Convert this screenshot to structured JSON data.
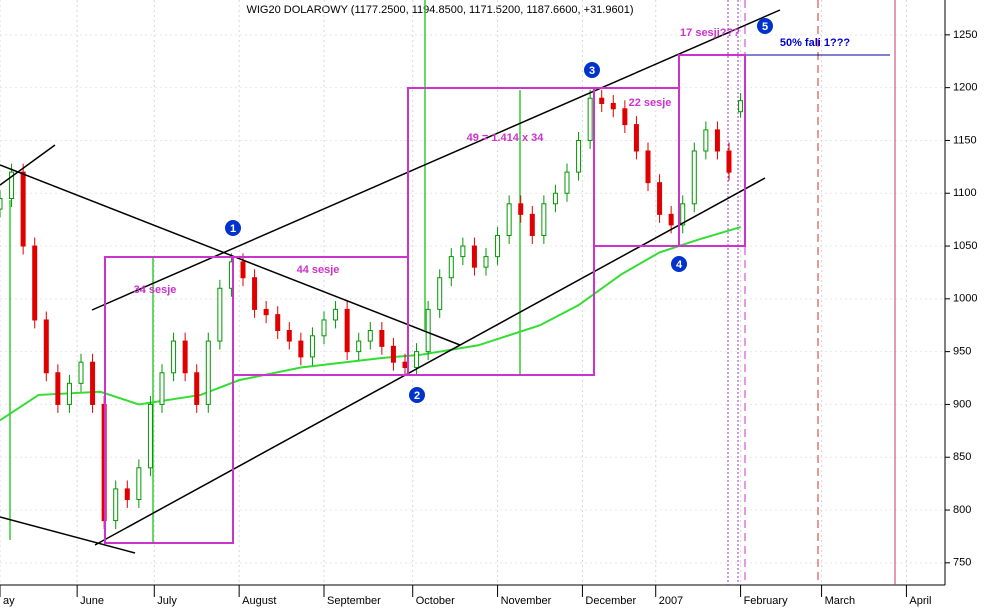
{
  "chart_data": {
    "type": "candlestick",
    "title": "WIG20 DOLAROWY (1177.2500, 1194.8500, 1171.5200, 1187.6600, +31.9601)",
    "xlim": [
      0,
      245
    ],
    "xticks": [
      {
        "value": 0,
        "label": "ay"
      },
      {
        "value": 20,
        "label": "June"
      },
      {
        "value": 40,
        "label": "July"
      },
      {
        "value": 62,
        "label": "August"
      },
      {
        "value": 84,
        "label": "September"
      },
      {
        "value": 107,
        "label": "October"
      },
      {
        "value": 129,
        "label": "November"
      },
      {
        "value": 151,
        "label": "December"
      },
      {
        "value": 170,
        "label": "2007"
      },
      {
        "value": 192,
        "label": "February"
      },
      {
        "value": 213,
        "label": "March"
      },
      {
        "value": 235,
        "label": "April"
      }
    ],
    "ylim": [
      729,
      1283
    ],
    "yticks": [
      750,
      800,
      850,
      900,
      950,
      1000,
      1050,
      1100,
      1150,
      1200,
      1250
    ],
    "grid": true,
    "candles": {
      "up_color": "#009900",
      "down_color": "#e00000",
      "x": [
        0,
        3,
        6,
        9,
        12,
        15,
        18,
        21,
        24,
        27,
        30,
        33,
        36,
        39,
        42,
        45,
        48,
        51,
        54,
        57,
        60,
        63,
        66,
        69,
        72,
        75,
        78,
        81,
        84,
        87,
        90,
        93,
        96,
        99,
        102,
        105,
        108,
        111,
        114,
        117,
        120,
        123,
        126,
        129,
        132,
        135,
        138,
        141,
        144,
        147,
        150,
        153,
        156,
        159,
        162,
        165,
        168,
        171,
        174,
        177,
        180,
        183,
        186,
        189,
        192
      ],
      "open": [
        1085,
        1095,
        1120,
        1050,
        980,
        930,
        900,
        920,
        940,
        900,
        790,
        820,
        810,
        840,
        900,
        930,
        960,
        930,
        900,
        960,
        1010,
        1035,
        1020,
        990,
        985,
        970,
        960,
        945,
        965,
        980,
        990,
        950,
        960,
        970,
        955,
        940,
        935,
        950,
        990,
        1020,
        1040,
        1050,
        1030,
        1040,
        1060,
        1090,
        1080,
        1060,
        1090,
        1100,
        1120,
        1150,
        1190,
        1185,
        1180,
        1165,
        1140,
        1110,
        1080,
        1070,
        1090,
        1140,
        1160,
        1140,
        1177.25
      ],
      "high": [
        1103,
        1128,
        1128,
        1058,
        988,
        938,
        928,
        948,
        948,
        908,
        828,
        828,
        848,
        908,
        938,
        968,
        968,
        938,
        968,
        1018,
        1043,
        1043,
        1028,
        998,
        993,
        978,
        968,
        973,
        988,
        998,
        998,
        968,
        978,
        978,
        963,
        948,
        958,
        998,
        1028,
        1048,
        1058,
        1058,
        1048,
        1068,
        1098,
        1098,
        1088,
        1098,
        1108,
        1128,
        1158,
        1198,
        1198,
        1193,
        1188,
        1173,
        1148,
        1118,
        1088,
        1098,
        1148,
        1168,
        1168,
        1148,
        1194.85
      ],
      "low": [
        1077,
        1087,
        1042,
        972,
        922,
        892,
        892,
        912,
        892,
        782,
        782,
        802,
        802,
        832,
        892,
        922,
        922,
        892,
        892,
        952,
        1002,
        1012,
        982,
        977,
        962,
        952,
        937,
        937,
        957,
        972,
        942,
        942,
        952,
        947,
        932,
        927,
        927,
        942,
        982,
        1012,
        1032,
        1022,
        1022,
        1032,
        1052,
        1072,
        1052,
        1052,
        1082,
        1092,
        1112,
        1142,
        1177,
        1172,
        1157,
        1132,
        1102,
        1072,
        1062,
        1062,
        1082,
        1132,
        1132,
        1112,
        1171.52
      ],
      "close": [
        1095,
        1120,
        1050,
        980,
        930,
        900,
        920,
        940,
        900,
        790,
        820,
        810,
        840,
        900,
        930,
        960,
        930,
        900,
        960,
        1010,
        1035,
        1020,
        990,
        985,
        970,
        960,
        945,
        965,
        980,
        990,
        950,
        960,
        970,
        955,
        940,
        935,
        950,
        990,
        1020,
        1040,
        1050,
        1030,
        1040,
        1060,
        1090,
        1080,
        1060,
        1090,
        1100,
        1120,
        1150,
        1190,
        1185,
        1180,
        1165,
        1140,
        1110,
        1080,
        1070,
        1090,
        1140,
        1160,
        1140,
        1120,
        1187.66
      ]
    },
    "ma": {
      "color": "#33dd33",
      "x": [
        0,
        10,
        26,
        36,
        52,
        62,
        78,
        99,
        109,
        124,
        140,
        150,
        161,
        171,
        181,
        192
      ],
      "values": [
        885,
        909,
        912,
        900,
        909,
        923,
        935,
        944,
        947,
        956,
        975,
        994,
        1023,
        1044,
        1056,
        1068
      ]
    },
    "annotations": [
      "34 sesje",
      "44 sesje",
      "49 = 1.414 x 34",
      "22 sesje",
      "17 sesji???",
      "50% fali 1???"
    ],
    "wave_labels": [
      "1",
      "2",
      "3",
      "4",
      "5"
    ]
  }
}
